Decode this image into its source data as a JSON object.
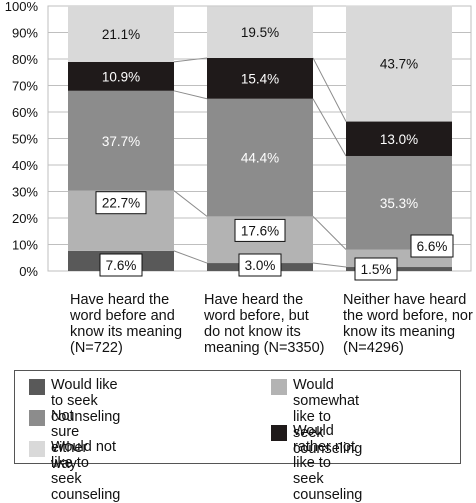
{
  "chart_data": {
    "type": "bar",
    "stacked": true,
    "title": "",
    "xlabel": "",
    "ylabel": "",
    "ylim": [
      0,
      100
    ],
    "yticks": [
      "0%",
      "10%",
      "20%",
      "30%",
      "40%",
      "50%",
      "60%",
      "70%",
      "80%",
      "90%",
      "100%"
    ],
    "grid": true,
    "legend_position": "bottom",
    "categories": [
      "Have heard the word before and know its meaning (N=722)",
      "Have heard the word before, but do not know its meaning (N=3350)",
      "Neither have heard the word before, nor know its meaning (N=4296)"
    ],
    "category_labels": [
      "Have heard the\nword before and\nknow its meaning\n(N=722)",
      "Have heard the\nword before, but\ndo not know its\nmeaning (N=3350)",
      "Neither have heard\nthe word before, nor\nknow its meaning\n(N=4296)"
    ],
    "series": [
      {
        "name": "Would like to seek counseling",
        "color": "#595959",
        "values": [
          7.6,
          3.0,
          1.5
        ],
        "labels": [
          "7.6%",
          "3.0%",
          "1.5%"
        ]
      },
      {
        "name": "Would somewhat like to seek counseling",
        "color": "#b3b3b3",
        "values": [
          22.7,
          17.6,
          6.6
        ],
        "labels": [
          "22.7%",
          "17.6%",
          "6.6%"
        ]
      },
      {
        "name": "Not sure either way",
        "color": "#8c8c8c",
        "values": [
          37.7,
          44.4,
          35.3
        ],
        "labels": [
          "37.7%",
          "44.4%",
          "35.3%"
        ]
      },
      {
        "name": "Would rather not like to seek counseling",
        "color": "#1f1a1a",
        "values": [
          10.9,
          15.4,
          13.0
        ],
        "labels": [
          "10.9%",
          "15.4%",
          "13.0%"
        ]
      },
      {
        "name": "Would not like to seek counseling",
        "color": "#d9d9d9",
        "values": [
          21.1,
          19.5,
          43.7
        ],
        "labels": [
          "21.1%",
          "19.5%",
          "43.7%"
        ]
      }
    ]
  },
  "legend": {
    "items": [
      {
        "label": "Would like to seek counseling",
        "color": "#595959"
      },
      {
        "label": "Would somewhat like to\nseek counseling",
        "color": "#b3b3b3"
      },
      {
        "label": "Not sure either way",
        "color": "#8c8c8c"
      },
      {
        "label": "Would rather not like to\nseek counseling",
        "color": "#1f1a1a"
      },
      {
        "label": "Would not like to seek counseling",
        "color": "#d9d9d9"
      }
    ]
  }
}
